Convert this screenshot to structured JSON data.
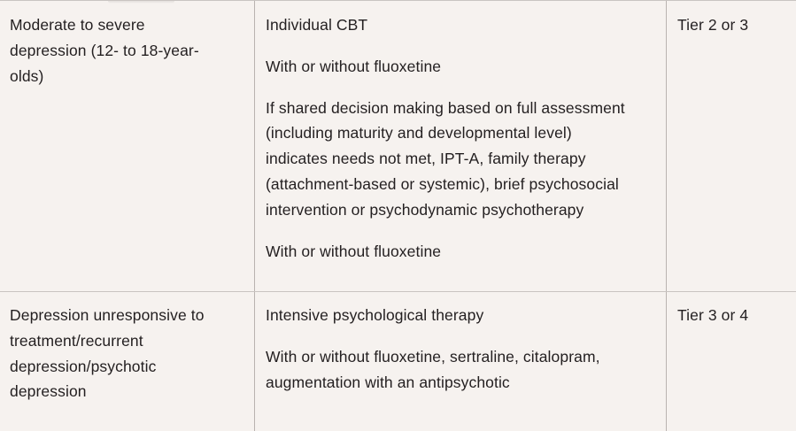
{
  "rows": [
    {
      "condition_lines": [
        "Moderate to severe",
        "depression (12- to 18-year-",
        "olds)"
      ],
      "treatment": [
        {
          "lines": [
            "Individual CBT"
          ]
        },
        {
          "lines": [
            "With or without fluoxetine"
          ]
        },
        {
          "lines": [
            "If shared decision making based on full assessment",
            "(including maturity and developmental level)",
            "indicates needs not met, IPT-A, family therapy",
            "(attachment-based or systemic), brief psychosocial",
            "intervention or psychodynamic psychotherapy"
          ]
        },
        {
          "lines": [
            "With or without fluoxetine"
          ]
        }
      ],
      "tier": "Tier 2 or 3"
    },
    {
      "condition_lines": [
        "Depression unresponsive to",
        "treatment/recurrent",
        "depression/psychotic",
        "depression"
      ],
      "treatment": [
        {
          "lines": [
            "Intensive psychological therapy"
          ]
        },
        {
          "lines": [
            "With or without fluoxetine, sertraline, citalopram,",
            "augmentation with an antipsychotic"
          ]
        }
      ],
      "tier": "Tier 3 or 4"
    }
  ]
}
